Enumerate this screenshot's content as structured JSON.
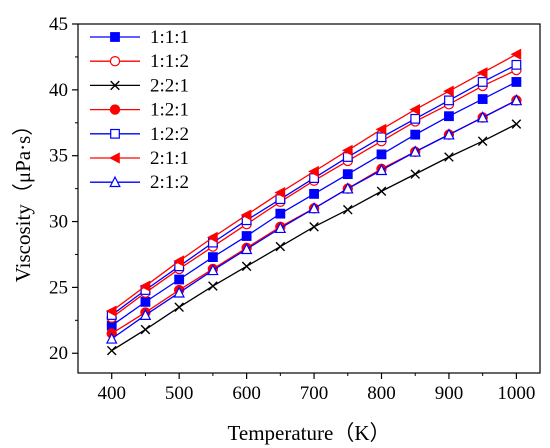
{
  "chart_data": {
    "type": "line",
    "xlabel": "Temperature（K）",
    "ylabel": "Viscosity（μPa·s）",
    "xlim": [
      350,
      1035
    ],
    "ylim": [
      18.5,
      45
    ],
    "xticks": [
      400,
      500,
      600,
      700,
      800,
      900,
      1000
    ],
    "yticks": [
      20,
      25,
      30,
      35,
      40,
      45
    ],
    "grid": false,
    "legend_position": "top-left",
    "x": [
      400,
      450,
      500,
      550,
      600,
      650,
      700,
      750,
      800,
      850,
      900,
      950,
      1000
    ],
    "series": [
      {
        "name": "1:1:1",
        "color": "#0000ff",
        "marker": "square-filled",
        "values": [
          22.1,
          23.9,
          25.6,
          27.3,
          28.9,
          30.6,
          32.1,
          33.6,
          35.1,
          36.6,
          38.0,
          39.3,
          40.6
        ]
      },
      {
        "name": "1:1:2",
        "color": "#ff0000",
        "marker": "circle-open",
        "values": [
          22.7,
          24.6,
          26.4,
          28.1,
          29.8,
          31.5,
          33.1,
          34.6,
          36.1,
          37.6,
          38.9,
          40.3,
          41.5
        ]
      },
      {
        "name": "2:2:1",
        "color": "#000000",
        "marker": "x",
        "values": [
          20.2,
          21.8,
          23.5,
          25.1,
          26.6,
          28.1,
          29.6,
          30.9,
          32.3,
          33.6,
          34.9,
          36.1,
          37.4
        ]
      },
      {
        "name": "1:2:1",
        "color": "#ff0000",
        "marker": "circle-filled",
        "values": [
          21.5,
          23.1,
          24.8,
          26.4,
          28.0,
          29.6,
          31.0,
          32.5,
          34.0,
          35.3,
          36.6,
          37.9,
          39.2
        ]
      },
      {
        "name": "1:2:2",
        "color": "#0000ff",
        "marker": "square-open",
        "values": [
          22.9,
          24.8,
          26.6,
          28.4,
          30.1,
          31.7,
          33.3,
          34.9,
          36.4,
          37.8,
          39.2,
          40.6,
          41.9
        ]
      },
      {
        "name": "2:1:1",
        "color": "#ff0000",
        "marker": "triangle-left-filled",
        "values": [
          23.2,
          25.1,
          27.0,
          28.8,
          30.5,
          32.2,
          33.8,
          35.4,
          37.0,
          38.5,
          39.9,
          41.3,
          42.7
        ]
      },
      {
        "name": "2:1:2",
        "color": "#0000ff",
        "marker": "triangle-up-open",
        "values": [
          21.1,
          22.9,
          24.6,
          26.3,
          27.9,
          29.5,
          31.0,
          32.5,
          33.9,
          35.3,
          36.6,
          37.9,
          39.2
        ]
      }
    ]
  }
}
